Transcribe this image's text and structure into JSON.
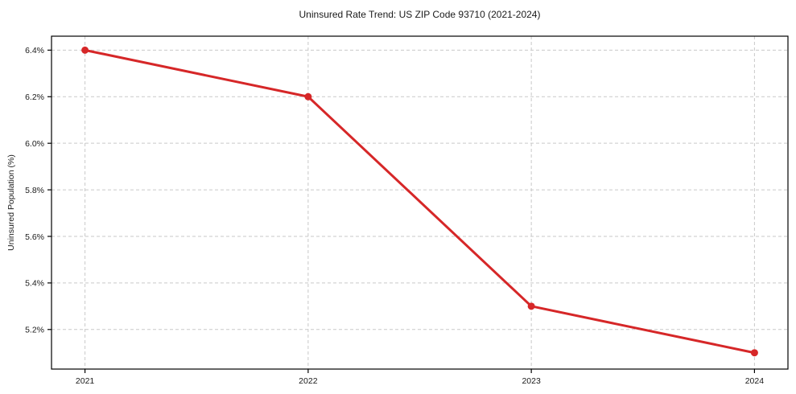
{
  "figure": {
    "background": "#ffffff"
  },
  "chart_data": {
    "type": "line",
    "title": "Uninsured Rate Trend: US ZIP Code 93710 (2021-2024)",
    "xlabel": "",
    "ylabel": "Uninsured Population (%)",
    "x": [
      2021,
      2022,
      2023,
      2024
    ],
    "x_tick_labels": [
      "2021",
      "2022",
      "2023",
      "2024"
    ],
    "values": [
      6.4,
      6.2,
      5.3,
      5.1
    ],
    "y_ticks": [
      5.2,
      5.4,
      5.6,
      5.8,
      6.0,
      6.2,
      6.4
    ],
    "y_tick_labels": [
      "5.2%",
      "5.4%",
      "5.6%",
      "5.8%",
      "6.0%",
      "6.2%",
      "6.4%"
    ],
    "xlim": [
      2020.85,
      2024.15
    ],
    "ylim": [
      5.03,
      6.46
    ],
    "grid": true,
    "grid_style": "dashed",
    "legend_position": "none",
    "colors": {
      "line": "#d62728",
      "marker": "#d62728",
      "grid": "#c9c9c9",
      "spine": "#000000",
      "text": "#1a1a1a"
    }
  }
}
